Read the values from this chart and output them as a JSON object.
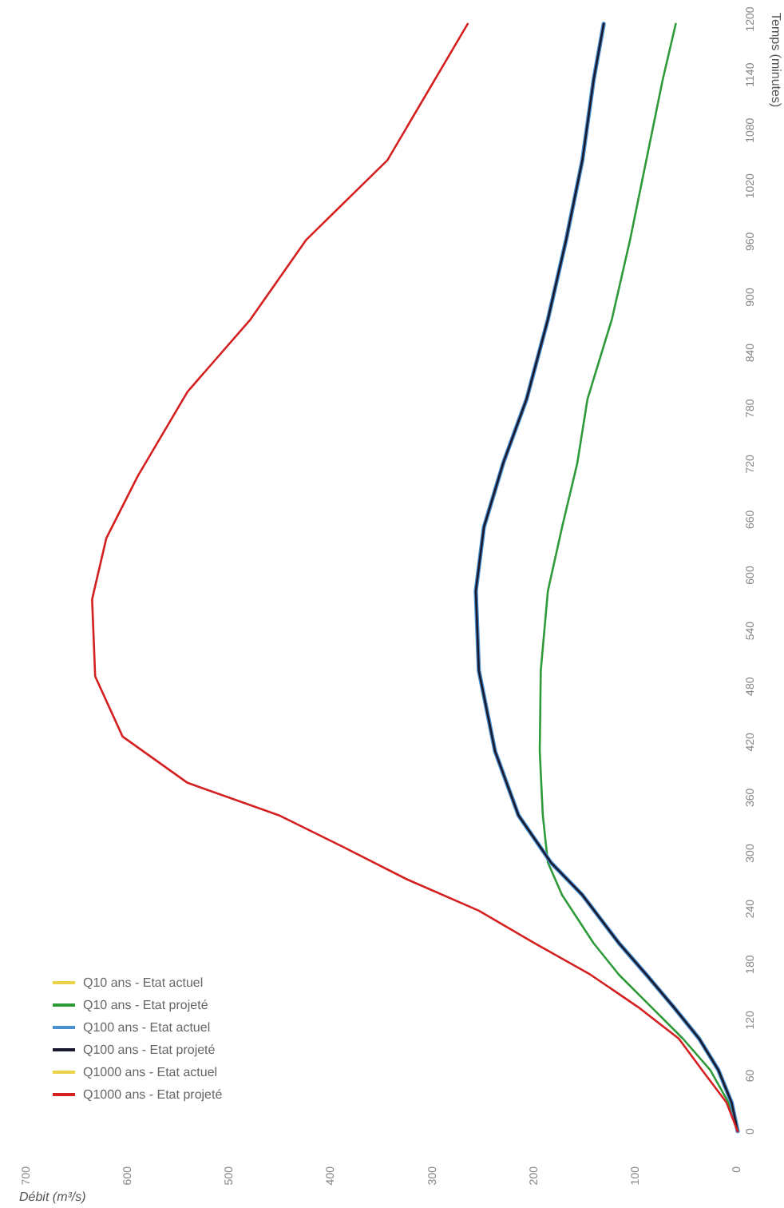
{
  "chart_data": {
    "type": "line",
    "xlabel": "Débit (m³/s)",
    "ylabel": "Temps (minutes)",
    "xlim": [
      700,
      0
    ],
    "xticks": [
      0,
      100,
      200,
      300,
      400,
      500,
      600,
      700
    ],
    "ylim": [
      0,
      1200
    ],
    "yticks": [
      0,
      60,
      120,
      180,
      240,
      300,
      360,
      420,
      480,
      540,
      600,
      660,
      720,
      780,
      840,
      900,
      960,
      1020,
      1080,
      1140,
      1200
    ],
    "grid": false,
    "legend": "bottom left",
    "marker": "none",
    "line_style": "solid",
    "series": [
      {
        "name": "Q10 ans - Etat actuel",
        "color": "#e8d24a",
        "values": [
          null,
          null,
          null,
          null,
          null,
          null,
          null,
          null,
          null,
          null,
          null,
          null,
          null,
          null,
          null,
          null,
          null,
          null,
          null,
          null,
          null
        ]
      },
      {
        "name": "Q10 ans - Etat projeté",
        "color": "#2e9a3a",
        "x": [
          0,
          9,
          27,
          54,
          85,
          117,
          142,
          173,
          187,
          192,
          195,
          194,
          187,
          173,
          158,
          148,
          124,
          106,
          90,
          74,
          61
        ],
        "values": [
          0,
          31,
          66,
          100,
          134,
          169,
          203,
          255,
          290,
          341,
          410,
          497,
          583,
          652,
          721,
          790,
          876,
          962,
          1048,
          1134,
          1195
        ]
      },
      {
        "name": "Q100 ans - Etat actuel",
        "color": "#4a8fd0",
        "x": [
          0,
          6,
          19,
          38,
          63,
          90,
          117,
          153,
          184,
          216,
          239,
          255,
          258,
          250,
          231,
          208,
          187,
          169,
          153,
          142,
          132
        ],
        "values": [
          0,
          31,
          66,
          100,
          134,
          169,
          203,
          255,
          290,
          341,
          410,
          497,
          583,
          652,
          721,
          790,
          876,
          962,
          1048,
          1134,
          1195
        ]
      },
      {
        "name": "Q100 ans - Etat projeté",
        "color": "#1a1a2e",
        "x": [
          0,
          6,
          19,
          38,
          63,
          90,
          117,
          153,
          184,
          216,
          239,
          255,
          258,
          250,
          231,
          208,
          187,
          169,
          153,
          142,
          132
        ],
        "values": [
          0,
          31,
          66,
          100,
          134,
          169,
          203,
          255,
          290,
          341,
          410,
          497,
          583,
          652,
          721,
          790,
          876,
          962,
          1048,
          1134,
          1195
        ]
      },
      {
        "name": "Q1000 ans - Etat actuel",
        "color": "#e8d24a",
        "values": [
          null,
          null,
          null,
          null,
          null,
          null,
          null,
          null,
          null,
          null,
          null,
          null,
          null,
          null,
          null,
          null,
          null,
          null,
          null,
          null,
          null,
          null
        ]
      },
      {
        "name": "Q1000 ans - Etat projeté",
        "color": "#d42020",
        "x": [
          0,
          11,
          35,
          58,
          98,
          145,
          200,
          255,
          326,
          389,
          452,
          542,
          606,
          633,
          636,
          622,
          591,
          542,
          480,
          425,
          345,
          266
        ],
        "values": [
          0,
          31,
          66,
          100,
          134,
          169,
          203,
          238,
          272,
          307,
          341,
          376,
          426,
          491,
          574,
          640,
          707,
          798,
          876,
          962,
          1048,
          1195
        ]
      }
    ]
  }
}
